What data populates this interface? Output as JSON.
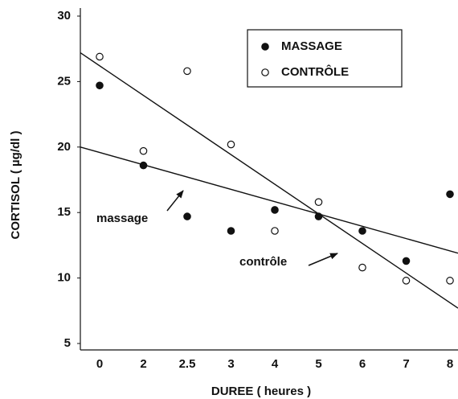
{
  "chart_data": {
    "type": "scatter",
    "x_label": "DUREE ( heures )",
    "y_label": "CORTISOL ( µg/dl )",
    "categories": [
      "0",
      "2",
      "2.5",
      "3",
      "4",
      "5",
      "6",
      "7",
      "8"
    ],
    "series": [
      {
        "name": "MASSAGE",
        "color": "#111111",
        "filled": true,
        "values": [
          24.7,
          18.6,
          14.7,
          13.6,
          15.2,
          14.7,
          13.6,
          11.3,
          16.4
        ]
      },
      {
        "name": "CONTRÔLE",
        "color": "#111111",
        "filled": false,
        "values": [
          26.9,
          19.7,
          25.8,
          20.2,
          13.6,
          15.8,
          10.8,
          9.8,
          9.8
        ]
      }
    ],
    "trend_lines": [
      {
        "label": "massage",
        "start": 20.0,
        "end": 11.9
      },
      {
        "label": "contrôle",
        "start": 27.2,
        "end": 7.7
      }
    ],
    "ylim": [
      5,
      30
    ],
    "yticks": [
      5,
      10,
      15,
      20,
      25,
      30
    ],
    "legend": "top-right"
  }
}
